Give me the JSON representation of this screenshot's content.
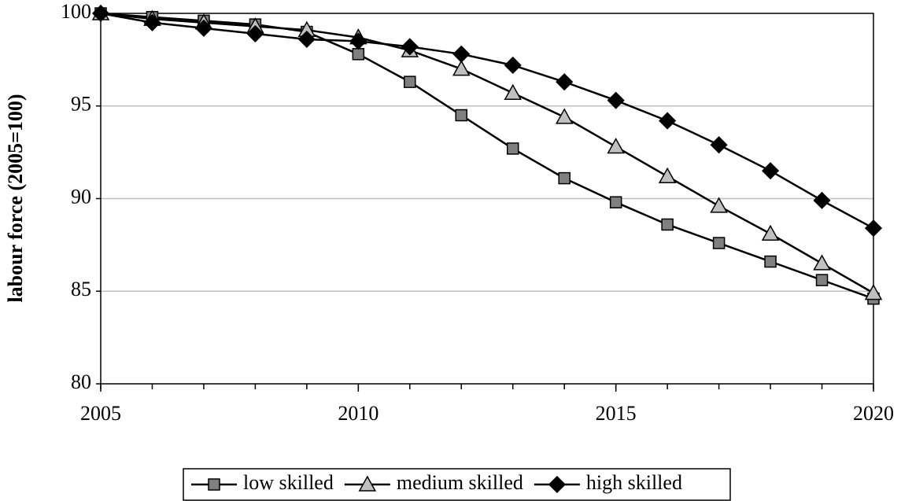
{
  "chart_data": {
    "type": "line",
    "y_label": "labour force (2005=100)",
    "x": [
      2005,
      2006,
      2007,
      2008,
      2009,
      2010,
      2011,
      2012,
      2013,
      2014,
      2015,
      2016,
      2017,
      2018,
      2019,
      2020
    ],
    "series": [
      {
        "name": "low skilled",
        "color": "#808080",
        "marker": "square",
        "values": [
          100,
          99.8,
          99.6,
          99.4,
          99.0,
          97.8,
          96.3,
          94.5,
          92.7,
          91.1,
          89.8,
          88.6,
          87.6,
          86.6,
          85.6,
          84.6
        ]
      },
      {
        "name": "medium skilled",
        "color": "#c0c0c0",
        "marker": "triangle",
        "values": [
          100,
          99.7,
          99.5,
          99.3,
          99.1,
          98.7,
          98.0,
          97.0,
          95.7,
          94.4,
          92.8,
          91.2,
          89.6,
          88.1,
          86.5,
          84.9
        ]
      },
      {
        "name": "high skilled",
        "color": "#000000",
        "marker": "diamond",
        "values": [
          100,
          99.5,
          99.2,
          98.9,
          98.6,
          98.5,
          98.2,
          97.8,
          97.2,
          96.3,
          95.3,
          94.2,
          92.9,
          91.5,
          89.9,
          88.4
        ]
      }
    ],
    "line_color": "#000000",
    "xlim": [
      2005,
      2020
    ],
    "xticks": [
      2005,
      2010,
      2015,
      2020
    ],
    "ylim": [
      80,
      100
    ],
    "yticks": [
      80,
      85,
      90,
      95,
      100
    ],
    "grid": true,
    "legend": "bottom"
  }
}
